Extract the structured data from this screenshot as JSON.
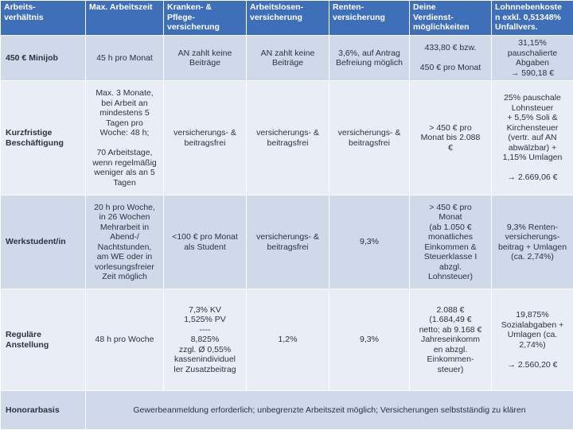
{
  "columns": [
    "Arbeits-\nverhältnis",
    "Max. Arbeitszeit",
    "Kranken- &\nPflege-\nversicherung",
    "Arbeitslosen-\nversicherung",
    "Renten-\nversicherung",
    "Deine\nVerdienst-\nmöglichkeiten",
    "Lohnnebenkoste\nn exkl. 0,51348%\nUnfallvers."
  ],
  "rows": [
    {
      "type": "450 € Minijob",
      "cells": [
        [
          "45 h pro Monat"
        ],
        [
          "AN zahlt keine",
          "Beiträge"
        ],
        [
          "AN zahlt keine",
          "Beiträge"
        ],
        [
          "3,6%, auf Antrag",
          "Befreiung möglich"
        ],
        [
          "433,80 € bzw.",
          "",
          "450 € pro Monat"
        ],
        [
          "31,15%",
          "pauschalierte",
          "Abgaben",
          "→ 590,18 €"
        ]
      ]
    },
    {
      "type": "Kurzfristige\nBeschäftigung",
      "cells": [
        [
          "Max. 3 Monate,",
          "bei Arbeit an",
          "mindestens 5",
          "Tagen pro",
          "Woche: 48 h;",
          "",
          "70 Arbeitstage,",
          "wenn regelmäßig",
          "weniger als an 5",
          "Tagen"
        ],
        [
          "versicherungs- &",
          "beitragsfrei"
        ],
        [
          "versicherungs- &",
          "beitragsfrei"
        ],
        [
          "versicherungs- &",
          "beitragsfrei"
        ],
        [
          "> 450 € pro",
          "Monat bis 2.088",
          "€"
        ],
        [
          "25% pauschale",
          "Lohnsteuer",
          "+ 5,5% Soli &",
          "Kirchensteuer",
          "(vertr. auf AN",
          "abwälzbar) +",
          "1,15% Umlagen",
          "",
          "→ 2.669,06 €"
        ]
      ]
    },
    {
      "type": "Werkstudent/in",
      "cells": [
        [
          "20 h pro Woche,",
          "in 26 Wochen",
          "Mehrarbeit in",
          "Abend-/",
          "Nachtstunden,",
          "am WE oder in",
          "vorlesungsfreier",
          "Zeit möglich"
        ],
        [
          "<100 € pro Monat",
          "als Student"
        ],
        [
          "versicherungs- &",
          "beitragsfrei"
        ],
        [
          "9,3%"
        ],
        [
          "> 450 € pro",
          "Monat",
          "(ab 1.050 €",
          "monatliches",
          "Einkommen &",
          "Steuerklasse I",
          "abzgl.",
          "Lohnsteuer)"
        ],
        [
          "9,3% Renten-",
          "versicherungs-",
          "beitrag + Umlagen",
          "(ca. 2,74%)"
        ]
      ]
    },
    {
      "type": "Reguläre\nAnstellung",
      "cells": [
        [
          "48 h pro Woche"
        ],
        [
          "7,3% KV",
          "1,525% PV",
          "----",
          "8,825%",
          "zzgl. Ø 0,55%",
          "kassenindividuel",
          "ler Zusatzbeitrag"
        ],
        [
          "1,2%"
        ],
        [
          "9,3%"
        ],
        [
          "2.088 €",
          "(1.684,49 €",
          "netto; ab 9.168 €",
          "Jahreseinkomm",
          "en abzgl.",
          "Einkommen-",
          "steuer)"
        ],
        [
          "19,875%",
          "Sozialabgaben +",
          "Umlagen (ca.",
          "2,74%)",
          "",
          "→ 2.560,20 €"
        ]
      ]
    }
  ],
  "honorar": {
    "type": "Honorarbasis",
    "text": "Gewerbeanmeldung erforderlich; unbegrenzte Arbeitszeit möglich; Versicherungen selbstständig zu klären"
  }
}
